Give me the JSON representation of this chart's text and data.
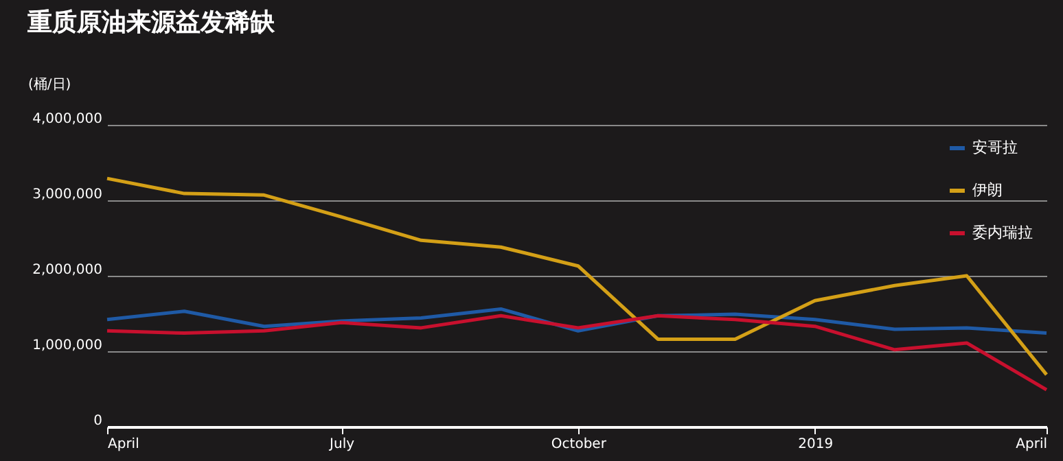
{
  "chart_data": {
    "type": "line",
    "title": "重质原油来源益发稀缺",
    "ylabel": "(桶/日)",
    "x": [
      "2018-04",
      "2018-05",
      "2018-06",
      "2018-07",
      "2018-08",
      "2018-09",
      "2018-10",
      "2018-11",
      "2018-12",
      "2019-01",
      "2019-02",
      "2019-03",
      "2019-04"
    ],
    "series": [
      {
        "name": "安哥拉",
        "color": "#1f5aa6",
        "values": [
          1420000,
          1530000,
          1330000,
          1400000,
          1440000,
          1560000,
          1270000,
          1470000,
          1490000,
          1420000,
          1290000,
          1310000,
          1240000
        ]
      },
      {
        "name": "伊朗",
        "color": "#d4a017",
        "values": [
          3290000,
          3090000,
          3070000,
          2780000,
          2470000,
          2380000,
          2130000,
          1160000,
          1160000,
          1670000,
          1870000,
          2000000,
          690000
        ]
      },
      {
        "name": "委内瑞拉",
        "color": "#c8102e",
        "values": [
          1270000,
          1240000,
          1270000,
          1380000,
          1310000,
          1470000,
          1310000,
          1470000,
          1420000,
          1330000,
          1020000,
          1110000,
          490000
        ]
      }
    ],
    "xlim": [
      "2018-04",
      "2019-04"
    ],
    "xticks": [
      {
        "value": "2018-04",
        "label": "April"
      },
      {
        "value": "2018-07",
        "label": "July"
      },
      {
        "value": "2018-10",
        "label": "October"
      },
      {
        "value": "2019-01",
        "label": "2019"
      },
      {
        "value": "2019-04",
        "label": "April"
      }
    ],
    "ylim": [
      0,
      4000000
    ],
    "yticks": [
      {
        "value": 0,
        "label": "0"
      },
      {
        "value": 1000000,
        "label": "1,000,000"
      },
      {
        "value": 2000000,
        "label": "2,000,000"
      },
      {
        "value": 3000000,
        "label": "3,000,000"
      },
      {
        "value": 4000000,
        "label": "4,000,000"
      }
    ],
    "grid": "y",
    "legend": "top right",
    "marker": "none",
    "line_style": "solid"
  }
}
